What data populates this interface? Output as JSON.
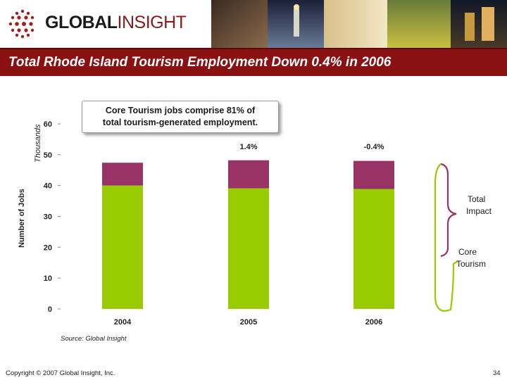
{
  "header": {
    "logo_part1": "GLOBAL",
    "logo_part2": "INSIGHT"
  },
  "title": "Total Rhode Island Tourism Employment Down 0.4% in 2006",
  "callout": {
    "line1": "Core Tourism jobs comprise 81% of",
    "line2": "total tourism-generated employment."
  },
  "chart_data": {
    "type": "bar",
    "stacked": true,
    "categories": [
      "2004",
      "2005",
      "2006"
    ],
    "series": [
      {
        "name": "Core Tourism",
        "values": [
          40.0,
          39.1,
          38.9
        ],
        "color": "#99cc00"
      },
      {
        "name": "Total Impact",
        "values": [
          7.4,
          9.1,
          9.1
        ],
        "color": "#993366"
      }
    ],
    "ylabel": "Number of Jobs",
    "yunit": "Thousands",
    "ylim": [
      0,
      60
    ],
    "yticks": [
      0,
      10,
      20,
      30,
      40,
      50,
      60
    ],
    "annotations": [
      "1.4%",
      "-0.4%"
    ],
    "annotation_categories": [
      "2005",
      "2006"
    ],
    "grid": false
  },
  "side_labels": {
    "total_line1": "Total",
    "total_line2": "Impact",
    "core_line1": "Core",
    "core_line2": "Tourism"
  },
  "bracket_color": "#99cc00",
  "bracket_color_total": "#993366",
  "source": "Source:  Global Insight",
  "copyright": "Copyright © 2007 Global Insight, Inc.",
  "page_number": "34"
}
